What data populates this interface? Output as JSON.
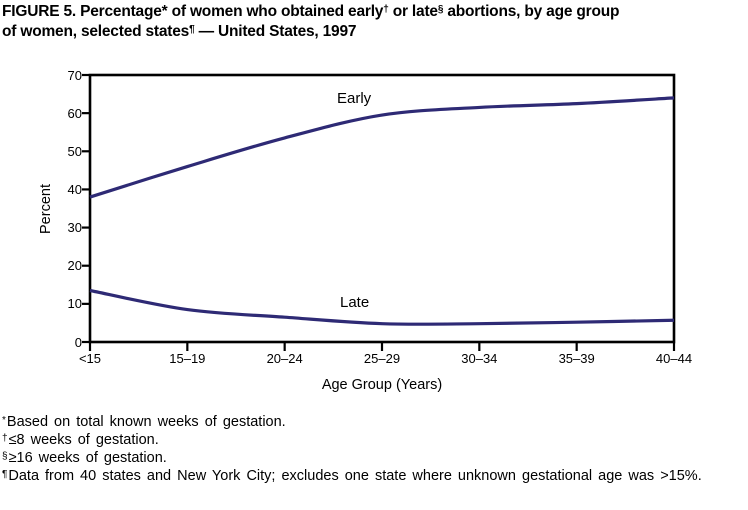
{
  "title": {
    "line1_pre": "FIGURE 5. Percentage* of women who obtained early",
    "line1_sup1": "†",
    "line1_mid": " or late",
    "line1_sup2": "§",
    "line1_post": " abortions, by age group",
    "line2_pre": "of women, selected states",
    "line2_sup": "¶",
    "line2_post": " — United States, 1997"
  },
  "chart_data": {
    "type": "line",
    "categories": [
      "<15",
      "15–19",
      "20–24",
      "25–29",
      "30–34",
      "35–39",
      "40–44"
    ],
    "series": [
      {
        "name": "Early",
        "values": [
          38,
          46,
          53.5,
          59.5,
          61.5,
          62.5,
          64
        ]
      },
      {
        "name": "Late",
        "values": [
          13.5,
          8.5,
          6.5,
          4.8,
          4.8,
          5.2,
          5.7
        ]
      }
    ],
    "xlabel": "Age Group (Years)",
    "ylabel": "Percent",
    "ylim": [
      0,
      70
    ],
    "yticks": [
      0,
      10,
      20,
      30,
      40,
      50,
      60,
      70
    ],
    "grid": false,
    "legend_position": "inline-labels",
    "line_color": "#2e2a75",
    "axis_color": "#000000"
  },
  "footnotes": [
    {
      "marker": "*",
      "text": "Based on total known weeks of gestation."
    },
    {
      "marker": "†",
      "text": "≤8 weeks of gestation."
    },
    {
      "marker": "§",
      "text": "≥16 weeks of gestation."
    },
    {
      "marker": "¶",
      "text": "Data from 40 states and New York City; excludes one state where unknown gestational age was >15%."
    }
  ]
}
